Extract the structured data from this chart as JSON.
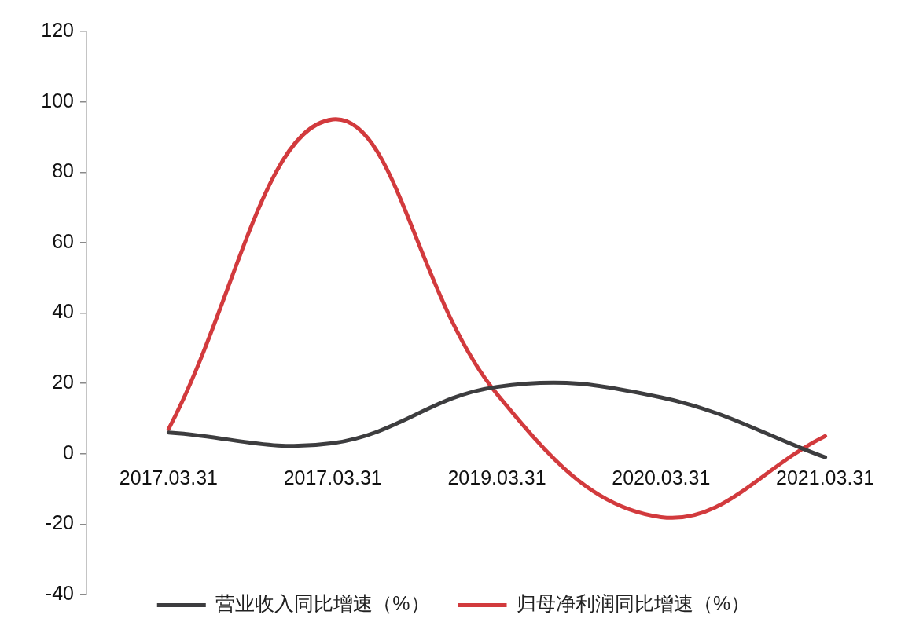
{
  "chart_data": {
    "type": "line",
    "categories": [
      "2017.03.31",
      "2017.03.31",
      "2019.03.31",
      "2020.03.31",
      "2021.03.31"
    ],
    "series": [
      {
        "name": "营业收入同比增速（%）",
        "color": "#3d3d3f",
        "values": [
          6,
          3,
          19,
          16,
          -1
        ]
      },
      {
        "name": "归母净利润同比增速（%）",
        "color": "#d23a3d",
        "values": [
          7,
          95,
          17,
          -18,
          5
        ]
      }
    ],
    "ylim": [
      -40,
      120
    ],
    "yticks": [
      -40,
      -20,
      0,
      20,
      40,
      60,
      80,
      100,
      120
    ],
    "grid": false,
    "legend": "bottom",
    "marker": "none",
    "line_style": "solid"
  }
}
